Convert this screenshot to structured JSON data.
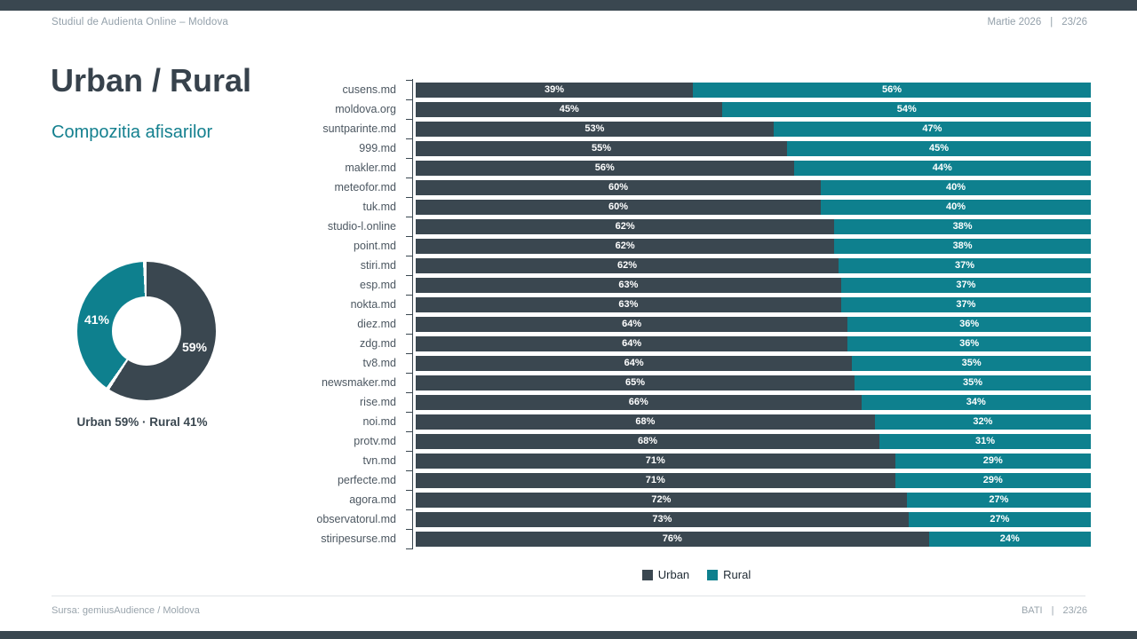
{
  "header": {
    "left": "Studiul de Audienta Online – Moldova",
    "right_date": "Martie 2026",
    "separator": "|",
    "right_page": "23/26"
  },
  "title": "Urban / Rural",
  "subtitle": "Compozitia afisarilor",
  "colors": {
    "urban": "#3a4750",
    "rural": "#0e808e",
    "accent_text": "#14808f"
  },
  "donut": {
    "urban_pct": 59,
    "rural_pct": 41,
    "urban_label": "59%",
    "rural_label": "41%",
    "caption": "Urban 59% · Rural 41%"
  },
  "legend": [
    {
      "name": "Urban",
      "color": "#3a4750"
    },
    {
      "name": "Rural",
      "color": "#0e808e"
    }
  ],
  "chart_data": {
    "type": "bar",
    "orientation": "horizontal",
    "stacked": true,
    "normalized_to_full_width": true,
    "value_suffix": "%",
    "categories": [
      "cusens.md",
      "moldova.org",
      "suntparinte.md",
      "999.md",
      "makler.md",
      "meteofor.md",
      "tuk.md",
      "studio-l.online",
      "point.md",
      "stiri.md",
      "esp.md",
      "nokta.md",
      "diez.md",
      "zdg.md",
      "tv8.md",
      "newsmaker.md",
      "rise.md",
      "noi.md",
      "protv.md",
      "tvn.md",
      "perfecte.md",
      "agora.md",
      "observatorul.md",
      "stiripesurse.md"
    ],
    "series": [
      {
        "name": "Urban",
        "color": "#3a4750",
        "values": [
          39,
          45,
          53,
          55,
          56,
          60,
          60,
          62,
          62,
          62,
          63,
          63,
          64,
          64,
          64,
          65,
          66,
          68,
          68,
          71,
          71,
          72,
          73,
          76
        ]
      },
      {
        "name": "Rural",
        "color": "#0e808e",
        "values": [
          56,
          54,
          47,
          45,
          44,
          40,
          40,
          38,
          38,
          37,
          37,
          37,
          36,
          36,
          35,
          35,
          34,
          32,
          31,
          29,
          29,
          27,
          27,
          24
        ]
      }
    ]
  },
  "footer": {
    "left": "Sursa: gemiusAudience / Moldova",
    "right_brand": "BATI",
    "separator": "|",
    "right_page": "23/26"
  }
}
